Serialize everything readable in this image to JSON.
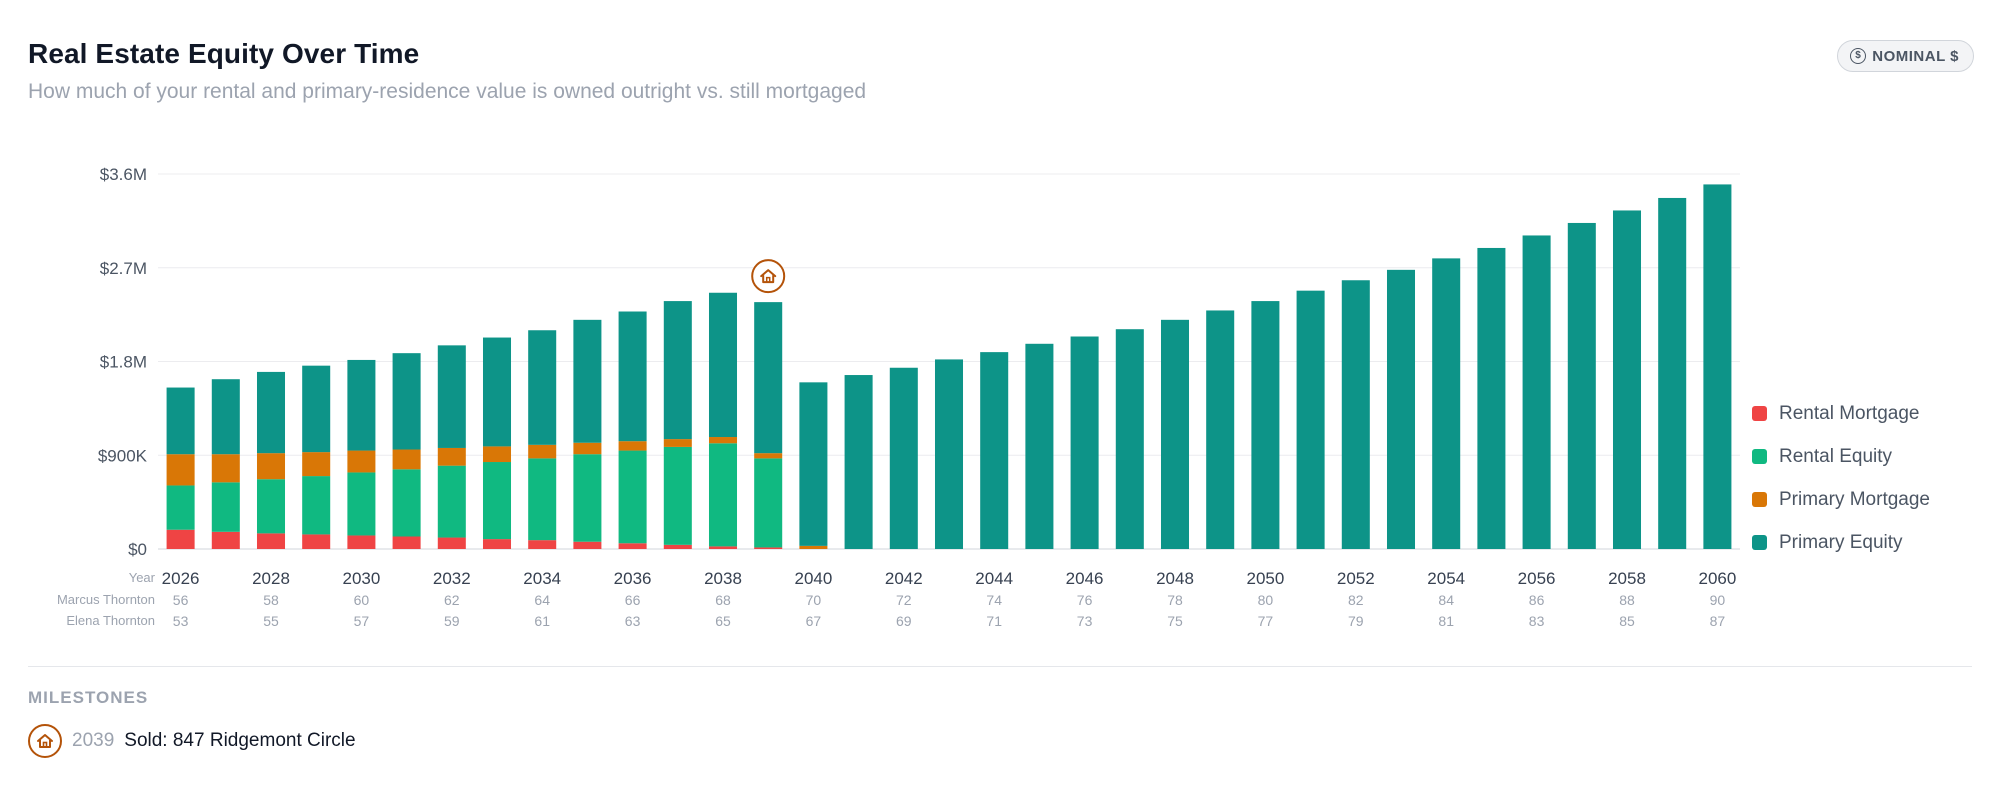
{
  "header": {
    "title": "Real Estate Equity Over Time",
    "subtitle": "How much of your rental and primary-residence value is owned outright vs. still mortgaged",
    "badge_label": "NOMINAL $",
    "badge_icon": "dollar-icon"
  },
  "colors": {
    "rental_mortgage": "#ef4444",
    "rental_equity": "#10b981",
    "primary_mortgage": "#d97706",
    "primary_equity": "#0d9488",
    "milestone": "#b45309"
  },
  "chart_data": {
    "type": "bar",
    "stacked": true,
    "ylim": [
      0,
      3600000
    ],
    "y_ticks": [
      {
        "value": 0,
        "label": "$0"
      },
      {
        "value": 900000,
        "label": "$900K"
      },
      {
        "value": 1800000,
        "label": "$1.8M"
      },
      {
        "value": 2700000,
        "label": "$2.7M"
      },
      {
        "value": 3600000,
        "label": "$3.6M"
      }
    ],
    "grid": true,
    "legend_position": "right",
    "row_labels": {
      "year": "Year",
      "person1": "Marcus Thornton",
      "person2": "Elena Thornton"
    },
    "categories": [
      2026,
      2027,
      2028,
      2029,
      2030,
      2031,
      2032,
      2033,
      2034,
      2035,
      2036,
      2037,
      2038,
      2039,
      2040,
      2041,
      2042,
      2043,
      2044,
      2045,
      2046,
      2047,
      2048,
      2049,
      2050,
      2051,
      2052,
      2053,
      2054,
      2055,
      2056,
      2057,
      2058,
      2059,
      2060
    ],
    "x_tick_labels": [
      "2026",
      "",
      "2028",
      "",
      "2030",
      "",
      "2032",
      "",
      "2034",
      "",
      "2036",
      "",
      "2038",
      "",
      "2040",
      "",
      "2042",
      "",
      "2044",
      "",
      "2046",
      "",
      "2048",
      "",
      "2050",
      "",
      "2052",
      "",
      "2054",
      "",
      "2056",
      "",
      "2058",
      "",
      "2060"
    ],
    "person1_ages": [
      "56",
      "",
      "58",
      "",
      "60",
      "",
      "62",
      "",
      "64",
      "",
      "66",
      "",
      "68",
      "",
      "70",
      "",
      "72",
      "",
      "74",
      "",
      "76",
      "",
      "78",
      "",
      "80",
      "",
      "82",
      "",
      "84",
      "",
      "86",
      "",
      "88",
      "",
      "90"
    ],
    "person2_ages": [
      "53",
      "",
      "55",
      "",
      "57",
      "",
      "59",
      "",
      "61",
      "",
      "63",
      "",
      "65",
      "",
      "67",
      "",
      "69",
      "",
      "71",
      "",
      "73",
      "",
      "75",
      "",
      "77",
      "",
      "79",
      "",
      "81",
      "",
      "83",
      "",
      "85",
      "",
      "87"
    ],
    "series": [
      {
        "name": "Rental Mortgage",
        "color": "#ef4444",
        "values": [
          185000,
          165000,
          150000,
          140000,
          130000,
          120000,
          110000,
          95000,
          85000,
          70000,
          55000,
          40000,
          25000,
          15000,
          0,
          0,
          0,
          0,
          0,
          0,
          0,
          0,
          0,
          0,
          0,
          0,
          0,
          0,
          0,
          0,
          0,
          0,
          0,
          0,
          0
        ]
      },
      {
        "name": "Rental Equity",
        "color": "#10b981",
        "values": [
          425000,
          475000,
          520000,
          560000,
          605000,
          645000,
          690000,
          740000,
          785000,
          840000,
          890000,
          940000,
          990000,
          855000,
          0,
          0,
          0,
          0,
          0,
          0,
          0,
          0,
          0,
          0,
          0,
          0,
          0,
          0,
          0,
          0,
          0,
          0,
          0,
          0,
          0
        ]
      },
      {
        "name": "Primary Mortgage",
        "color": "#d97706",
        "values": [
          300000,
          270000,
          250000,
          230000,
          210000,
          190000,
          170000,
          150000,
          130000,
          110000,
          90000,
          75000,
          60000,
          50000,
          30000,
          0,
          0,
          0,
          0,
          0,
          0,
          0,
          0,
          0,
          0,
          0,
          0,
          0,
          0,
          0,
          0,
          0,
          0,
          0,
          0
        ]
      },
      {
        "name": "Primary Equity",
        "color": "#0d9488",
        "values": [
          640000,
          720000,
          780000,
          830000,
          870000,
          925000,
          985000,
          1045000,
          1100000,
          1180000,
          1245000,
          1325000,
          1385000,
          1450000,
          1570000,
          1670000,
          1740000,
          1820000,
          1890000,
          1970000,
          2040000,
          2110000,
          2200000,
          2290000,
          2380000,
          2480000,
          2580000,
          2680000,
          2790000,
          2890000,
          3010000,
          3130000,
          3250000,
          3370000,
          3500000
        ]
      }
    ],
    "milestone_markers": [
      {
        "category": 2039,
        "icon": "house-icon"
      }
    ]
  },
  "milestones": {
    "heading": "MILESTONES",
    "items": [
      {
        "year": "2039",
        "label": "Sold: 847 Ridgemont Circle",
        "icon": "house-icon"
      }
    ]
  }
}
